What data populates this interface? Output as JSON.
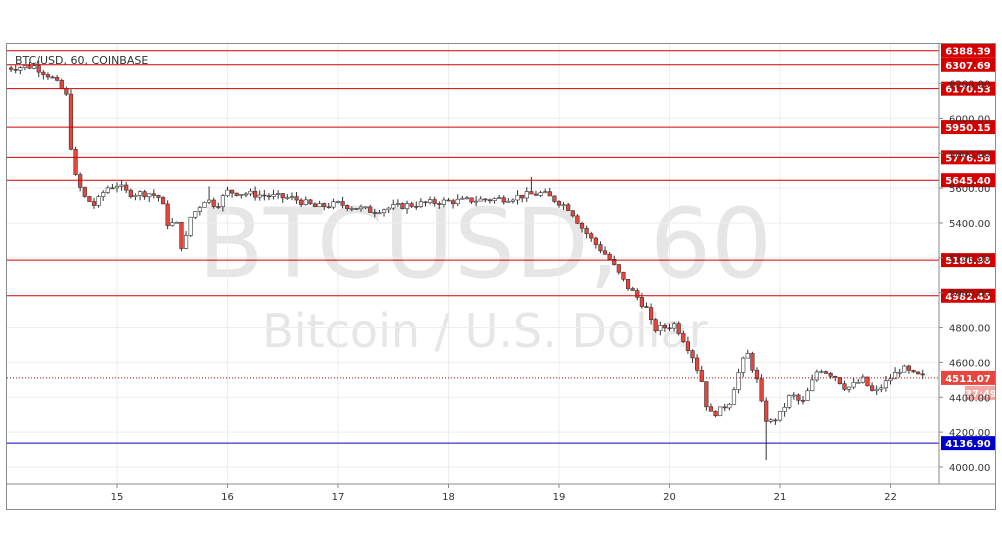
{
  "title": "BTC/USD, 60, COINBASE",
  "watermark": {
    "symbol": "BTCUSD, 60",
    "description": "Bitcoin / U.S. Dollar"
  },
  "colors": {
    "up": "#ffffff",
    "down": "#e8463d",
    "wick": "#333333",
    "resistance": "#d40000",
    "support": "#0000c8",
    "current": "#d40000",
    "grid": "#eeeeee"
  },
  "chart_data": {
    "type": "candlestick",
    "title": "BTC/USD, 60, COINBASE",
    "x_ticks": [
      "15",
      "16",
      "17",
      "18",
      "19",
      "20",
      "21",
      "22"
    ],
    "x_range": [
      14.0,
      22.4
    ],
    "y_ticks": [
      4000,
      4200,
      4400,
      4600,
      4800,
      5000,
      5200,
      5400,
      5600,
      5800,
      6000,
      6200
    ],
    "y_tick_labels": [
      "4000.00",
      "4200.00",
      "4400.00",
      "4600.00",
      "4800.00",
      "5000.00",
      "5200.00",
      "5400.00",
      "5600.00",
      "5800.00",
      "6000.00",
      "6200.00"
    ],
    "ylim": [
      3900,
      6450
    ],
    "price_levels": [
      {
        "value": 6388.39,
        "label": "6388.39",
        "kind": "resistance"
      },
      {
        "value": 6307.69,
        "label": "6307.69",
        "kind": "resistance"
      },
      {
        "value": 6170.53,
        "label": "6170.53",
        "kind": "resistance"
      },
      {
        "value": 5950.15,
        "label": "5950.15",
        "kind": "resistance"
      },
      {
        "value": 5776.58,
        "label": "5776.58",
        "kind": "resistance"
      },
      {
        "value": 5645.4,
        "label": "5645.40",
        "kind": "resistance"
      },
      {
        "value": 5186.98,
        "label": "5186.98",
        "kind": "resistance"
      },
      {
        "value": 4982.45,
        "label": "4982.45",
        "kind": "resistance"
      },
      {
        "value": 4136.9,
        "label": "4136.90",
        "kind": "support"
      }
    ],
    "current_price": {
      "value": 4511.07,
      "label": "4511.07",
      "countdown": "37:49"
    },
    "close_path": [
      [
        14.0,
        6290
      ],
      [
        14.25,
        6300
      ],
      [
        14.4,
        6240
      ],
      [
        14.5,
        6170
      ],
      [
        14.55,
        6120
      ],
      [
        14.6,
        5700
      ],
      [
        14.7,
        5550
      ],
      [
        14.8,
        5500
      ],
      [
        14.9,
        5600
      ],
      [
        15.0,
        5620
      ],
      [
        15.1,
        5570
      ],
      [
        15.3,
        5570
      ],
      [
        15.4,
        5540
      ],
      [
        15.45,
        5400
      ],
      [
        15.55,
        5390
      ],
      [
        15.6,
        5210
      ],
      [
        15.65,
        5420
      ],
      [
        15.8,
        5540
      ],
      [
        15.9,
        5500
      ],
      [
        16.0,
        5580
      ],
      [
        16.3,
        5560
      ],
      [
        16.6,
        5540
      ],
      [
        16.8,
        5490
      ],
      [
        17.0,
        5510
      ],
      [
        17.3,
        5470
      ],
      [
        17.6,
        5500
      ],
      [
        17.9,
        5520
      ],
      [
        18.2,
        5530
      ],
      [
        18.5,
        5540
      ],
      [
        18.7,
        5560
      ],
      [
        18.85,
        5570
      ],
      [
        19.0,
        5520
      ],
      [
        19.1,
        5480
      ],
      [
        19.2,
        5380
      ],
      [
        19.3,
        5300
      ],
      [
        19.45,
        5200
      ],
      [
        19.6,
        5050
      ],
      [
        19.7,
        4980
      ],
      [
        19.8,
        4900
      ],
      [
        19.85,
        4790
      ],
      [
        19.95,
        4800
      ],
      [
        20.05,
        4820
      ],
      [
        20.2,
        4650
      ],
      [
        20.3,
        4480
      ],
      [
        20.35,
        4300
      ],
      [
        20.45,
        4320
      ],
      [
        20.55,
        4380
      ],
      [
        20.6,
        4500
      ],
      [
        20.7,
        4660
      ],
      [
        20.8,
        4480
      ],
      [
        20.85,
        4300
      ],
      [
        20.9,
        4250
      ],
      [
        21.0,
        4300
      ],
      [
        21.1,
        4420
      ],
      [
        21.2,
        4360
      ],
      [
        21.35,
        4570
      ],
      [
        21.5,
        4520
      ],
      [
        21.6,
        4450
      ],
      [
        21.75,
        4500
      ],
      [
        21.85,
        4420
      ],
      [
        21.95,
        4480
      ],
      [
        22.1,
        4570
      ],
      [
        22.2,
        4530
      ],
      [
        22.32,
        4511
      ]
    ],
    "spikes": [
      {
        "x": 18.77,
        "high": 5665
      },
      {
        "x": 20.86,
        "low": 4040
      },
      {
        "x": 15.83,
        "high": 5610
      }
    ]
  }
}
